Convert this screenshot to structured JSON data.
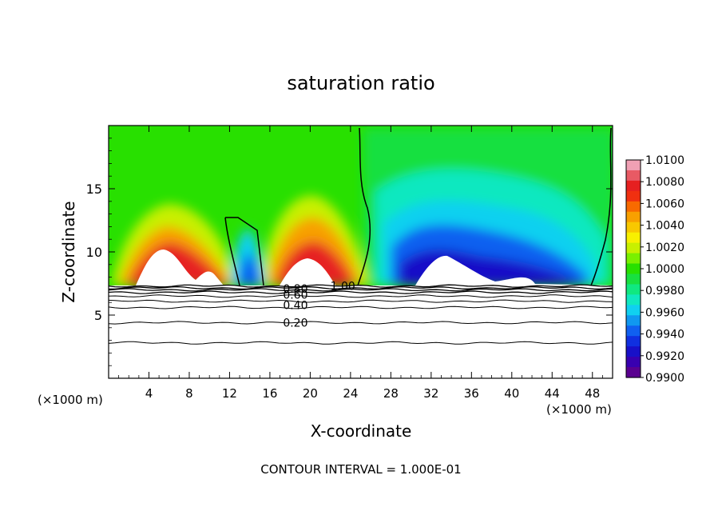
{
  "chart_data": {
    "type": "heatmap",
    "title": "saturation ratio",
    "xlabel": "X-coordinate",
    "ylabel": "Z-coordinate",
    "x_unit_label": "(×1000 m)",
    "x_unit_label_right": "(×1000 m)",
    "xlim": [
      0,
      50
    ],
    "ylim": [
      0,
      20
    ],
    "x_ticks": [
      4,
      8,
      12,
      16,
      20,
      24,
      28,
      32,
      36,
      40,
      44,
      48
    ],
    "y_ticks": [
      5,
      10,
      15
    ],
    "footer": "CONTOUR INTERVAL = 1.000E-01",
    "colorbar": {
      "labels": [
        "1.0100",
        "1.0080",
        "1.0060",
        "1.0040",
        "1.0020",
        "1.0000",
        "0.9980",
        "0.9960",
        "0.9940",
        "0.9920",
        "0.9900"
      ],
      "colors": [
        "#f0a0b4",
        "#e85a64",
        "#e62020",
        "#f03010",
        "#f86a00",
        "#f8a000",
        "#f8c800",
        "#f8f000",
        "#c8f000",
        "#7af000",
        "#28e000",
        "#18e040",
        "#10e880",
        "#10e8c0",
        "#10d0f0",
        "#1098f0",
        "#1060f0",
        "#1030e0",
        "#1810c8",
        "#3800b0",
        "#5a0090"
      ]
    },
    "contour_labels": [
      {
        "text": "1.00",
        "x": 22.0,
        "y": 7.3
      },
      {
        "text": "0.80",
        "x": 17.3,
        "y": 7.1
      },
      {
        "text": "0.60",
        "x": 17.3,
        "y": 6.6
      },
      {
        "text": "0.40",
        "x": 17.3,
        "y": 5.8
      },
      {
        "text": "0.20",
        "x": 17.3,
        "y": 4.4
      }
    ],
    "contour_lines": [
      {
        "level": 1.0,
        "z": 7.3
      },
      {
        "level": 0.9,
        "z": 7.15
      },
      {
        "level": 0.8,
        "z": 7.0
      },
      {
        "level": 0.7,
        "z": 6.8
      },
      {
        "level": 0.6,
        "z": 6.5
      },
      {
        "level": 0.5,
        "z": 6.1
      },
      {
        "level": 0.4,
        "z": 5.6
      },
      {
        "level": 0.2,
        "z": 4.4
      },
      {
        "level": 0.1,
        "z": 2.8
      }
    ]
  }
}
